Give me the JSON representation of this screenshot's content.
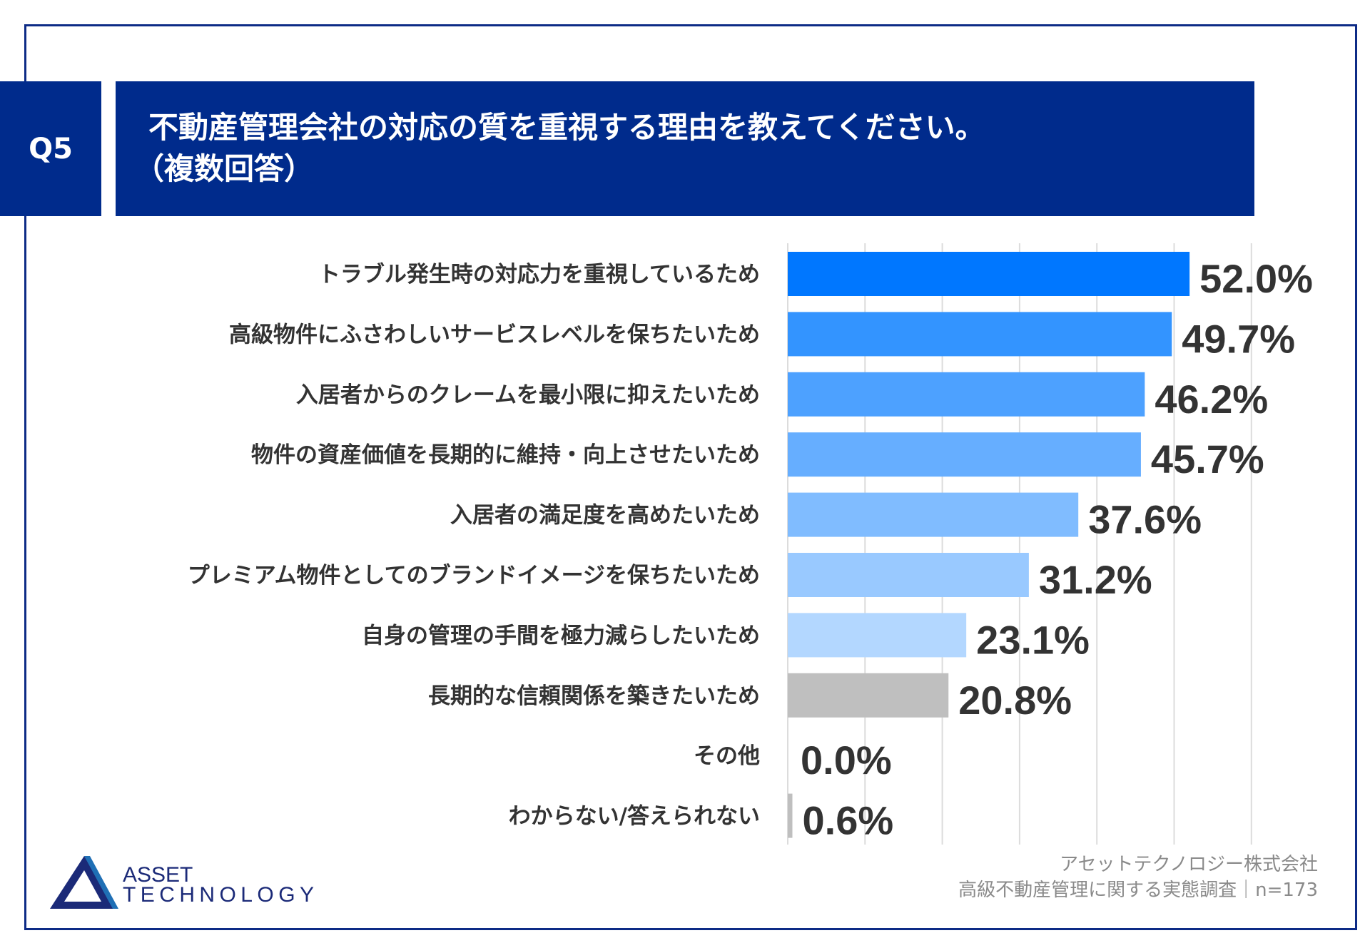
{
  "header": {
    "question_number": "Q5",
    "title_line1": "不動産管理会社の対応の質を重視する理由を教えてください。",
    "title_line2": "（複数回答）"
  },
  "chart_data": {
    "type": "bar",
    "orientation": "horizontal",
    "categories": [
      "トラブル発生時の対応力を重視しているため",
      "高級物件にふさわしいサービスレベルを保ちたいため",
      "入居者からのクレームを最小限に抑えたいため",
      "物件の資産価値を長期的に維持・向上させたいため",
      "入居者の満足度を高めたいため",
      "プレミアム物件としてのブランドイメージを保ちたいため",
      "自身の管理の手間を極力減らしたいため",
      "長期的な信頼関係を築きたいため",
      "その他",
      "わからない/答えられない"
    ],
    "values": [
      52.0,
      49.7,
      46.2,
      45.7,
      37.6,
      31.2,
      23.1,
      20.8,
      0.0,
      0.6
    ],
    "value_labels": [
      "52.0%",
      "49.7%",
      "46.2%",
      "45.7%",
      "37.6%",
      "31.2%",
      "23.1%",
      "20.8%",
      "0.0%",
      "0.6%"
    ],
    "colors": [
      "#0077ff",
      "#3394ff",
      "#4da1ff",
      "#66aeff",
      "#80bcff",
      "#99c9ff",
      "#b3d7ff",
      "#bfbfbf",
      "#bfbfbf",
      "#bfbfbf"
    ],
    "xlim": [
      0,
      60
    ],
    "grid": true,
    "gridline_step": 10,
    "unit": "%"
  },
  "footer": {
    "company": "アセットテクノロジー株式会社",
    "survey": "高級不動産管理に関する実態調査｜n=173"
  },
  "logo": {
    "line1": "ASSET",
    "line2": "TECHNOLOGY"
  }
}
